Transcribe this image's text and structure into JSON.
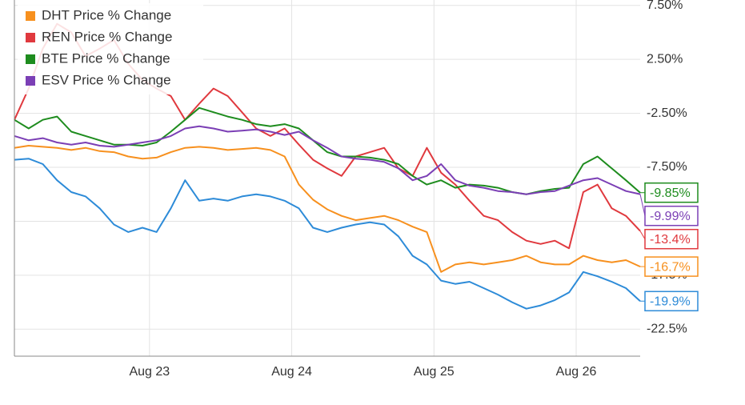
{
  "chart_data": {
    "type": "line",
    "x": [
      22.05,
      22.15,
      22.25,
      22.35,
      22.45,
      22.55,
      22.65,
      22.75,
      22.85,
      22.95,
      23.05,
      23.15,
      23.25,
      23.35,
      23.45,
      23.55,
      23.65,
      23.75,
      23.85,
      23.95,
      24.05,
      24.15,
      24.25,
      24.35,
      24.45,
      24.55,
      24.65,
      24.75,
      24.85,
      24.95,
      25.05,
      25.15,
      25.25,
      25.35,
      25.45,
      25.55,
      25.65,
      25.75,
      25.85,
      25.95,
      26.05,
      26.15,
      26.25,
      26.35,
      26.45
    ],
    "xlim": [
      22.05,
      26.45
    ],
    "xticks": [
      {
        "value": 23,
        "label": "Aug 23"
      },
      {
        "value": 24,
        "label": "Aug 24"
      },
      {
        "value": 25,
        "label": "Aug 25"
      },
      {
        "value": 26,
        "label": "Aug 26"
      }
    ],
    "ylim": [
      -25,
      8
    ],
    "yticks": [
      {
        "value": 7.5,
        "label": "7.50%"
      },
      {
        "value": 2.5,
        "label": "2.50%"
      },
      {
        "value": -2.5,
        "label": "-2.50%"
      },
      {
        "value": -7.5,
        "label": "-7.50%"
      },
      {
        "value": -12.5,
        "label": "-12.5%"
      },
      {
        "value": -17.5,
        "label": "-17.5%"
      },
      {
        "value": -22.5,
        "label": "-22.5%"
      }
    ],
    "grid": true,
    "legend": "upper-left",
    "series": [
      {
        "color": "#2d8bd8",
        "end_label": "-19.9%",
        "values": [
          -6.8,
          -6.7,
          -7.2,
          -8.7,
          -9.8,
          -10.2,
          -11.3,
          -12.8,
          -13.5,
          -13.1,
          -13.5,
          -11.3,
          -8.7,
          -10.6,
          -10.4,
          -10.6,
          -10.2,
          -10.0,
          -10.2,
          -10.6,
          -11.3,
          -13.1,
          -13.5,
          -13.1,
          -12.8,
          -12.6,
          -12.8,
          -13.9,
          -15.7,
          -16.5,
          -18.0,
          -18.3,
          -18.1,
          -18.7,
          -19.3,
          -20.0,
          -20.6,
          -20.3,
          -19.8,
          -19.1,
          -17.2,
          -17.6,
          -18.1,
          -18.7,
          -19.9
        ]
      },
      {
        "name": "DHT Price % Change",
        "color": "#f7901e",
        "end_label": "-16.7%",
        "values": [
          -5.7,
          -5.5,
          -5.6,
          -5.7,
          -5.9,
          -5.7,
          -6.0,
          -6.1,
          -6.5,
          -6.7,
          -6.6,
          -6.1,
          -5.7,
          -5.6,
          -5.7,
          -5.9,
          -5.8,
          -5.7,
          -5.9,
          -6.5,
          -9.1,
          -10.5,
          -11.4,
          -12.0,
          -12.4,
          -12.2,
          -12.0,
          -12.4,
          -13.0,
          -13.5,
          -17.2,
          -16.5,
          -16.3,
          -16.5,
          -16.3,
          -16.1,
          -15.7,
          -16.3,
          -16.5,
          -16.5,
          -15.7,
          -16.1,
          -16.3,
          -16.1,
          -16.7
        ]
      },
      {
        "name": "REN Price % Change",
        "color": "#e0393e",
        "end_label": "-13.4%",
        "values": [
          -3.1,
          -0.2,
          3.5,
          5.8,
          5.0,
          2.8,
          3.5,
          4.3,
          2.1,
          0.6,
          -0.2,
          -0.9,
          -3.1,
          -1.6,
          -0.2,
          -0.9,
          -2.4,
          -3.9,
          -4.6,
          -3.9,
          -5.4,
          -6.8,
          -7.6,
          -8.3,
          -6.5,
          -6.1,
          -5.7,
          -7.6,
          -8.3,
          -5.7,
          -8.0,
          -9.1,
          -10.6,
          -12.0,
          -12.4,
          -13.5,
          -14.3,
          -14.6,
          -14.3,
          -15.0,
          -9.8,
          -9.1,
          -11.3,
          -12.0,
          -13.4
        ]
      },
      {
        "name": "BTE Price % Change",
        "color": "#1e8c1e",
        "end_label": "-9.85%",
        "values": [
          -3.1,
          -3.9,
          -3.1,
          -2.8,
          -4.2,
          -4.6,
          -5.0,
          -5.4,
          -5.4,
          -5.5,
          -5.2,
          -4.2,
          -3.1,
          -2.0,
          -2.4,
          -2.8,
          -3.1,
          -3.5,
          -3.7,
          -3.5,
          -3.9,
          -5.0,
          -6.1,
          -6.5,
          -6.5,
          -6.6,
          -6.8,
          -7.2,
          -8.3,
          -9.1,
          -8.7,
          -9.4,
          -9.1,
          -9.2,
          -9.4,
          -9.8,
          -10.0,
          -9.7,
          -9.5,
          -9.4,
          -7.2,
          -6.5,
          -7.6,
          -8.7,
          -9.85
        ]
      },
      {
        "name": "ESV Price % Change",
        "color": "#7b3fb5",
        "end_label": "-9.99%",
        "values": [
          -4.6,
          -5.0,
          -4.8,
          -5.2,
          -5.4,
          -5.2,
          -5.5,
          -5.6,
          -5.4,
          -5.2,
          -5.0,
          -4.6,
          -3.9,
          -3.7,
          -3.9,
          -4.2,
          -4.1,
          -4.0,
          -4.2,
          -4.5,
          -4.2,
          -5.0,
          -5.7,
          -6.5,
          -6.7,
          -6.8,
          -7.0,
          -7.6,
          -8.7,
          -8.3,
          -7.2,
          -8.7,
          -9.2,
          -9.4,
          -9.7,
          -9.8,
          -10.0,
          -9.8,
          -9.7,
          -9.2,
          -8.7,
          -8.5,
          -9.1,
          -9.7,
          -9.99
        ]
      }
    ]
  }
}
